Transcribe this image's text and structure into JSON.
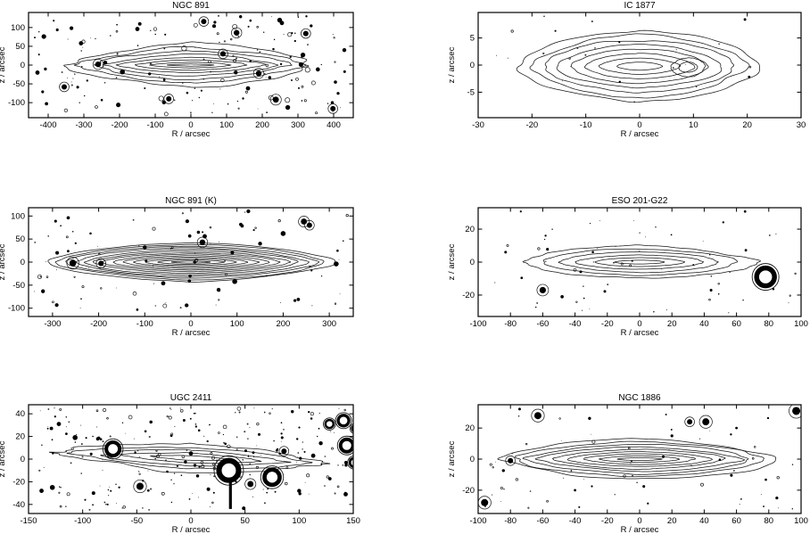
{
  "figure": {
    "background": "#ffffff",
    "ink": "#000000",
    "contour_color": "#161616"
  },
  "chart_data": [
    {
      "type": "contour",
      "title": "NGC 891",
      "xlabel": "R / arcsec",
      "ylabel": "z / arcsec",
      "xlim": [
        -455,
        455
      ],
      "ylim": [
        -140,
        140
      ],
      "xticks": [
        -400,
        -300,
        -200,
        -100,
        0,
        100,
        200,
        300,
        400
      ],
      "yticks": [
        -100,
        -50,
        0,
        50,
        100
      ],
      "galaxy": {
        "center": [
          0,
          0
        ],
        "r_extent_arcsec": 358,
        "z_extent_arcsec": 56,
        "contour_levels": 8,
        "wobble": 0.14,
        "end_shape": 1.5,
        "flatten_inner": 1.45,
        "radial_power": 0.82,
        "slope": 0
      },
      "bright_stars": [],
      "dark_stars": [
        [
          -260,
          2,
          3.2
        ],
        [
          -355,
          -58,
          3
        ],
        [
          -308,
          58,
          2.4
        ],
        [
          -192,
          -18,
          2.8
        ],
        [
          90,
          30,
          3
        ],
        [
          190,
          -22,
          3.2
        ],
        [
          238,
          -92,
          3.4
        ],
        [
          -62,
          -90,
          3
        ],
        [
          128,
          86,
          3.2
        ],
        [
          322,
          84,
          3
        ],
        [
          398,
          -116,
          3
        ],
        [
          36,
          116,
          3
        ],
        [
          -412,
          76,
          2.6
        ],
        [
          255,
          112,
          2.4
        ],
        [
          160,
          -62,
          2.4
        ],
        [
          -150,
          96,
          2.4
        ],
        [
          430,
          40,
          2.2
        ],
        [
          -430,
          -20,
          2.4
        ]
      ],
      "streaks": [],
      "subpeaks": [],
      "noise_specks": {
        "count": 150,
        "max_radius_px": 2.4
      }
    },
    {
      "type": "contour",
      "title": "IC 1877",
      "xlabel": "R / arcsec",
      "ylabel": "z / arcsec",
      "xlim": [
        -30,
        30
      ],
      "ylim": [
        -9.7,
        9.7
      ],
      "xticks": [
        -30,
        -20,
        -10,
        0,
        10,
        20,
        30
      ],
      "yticks": [
        -5,
        0,
        5
      ],
      "galaxy": {
        "center": [
          0,
          -0.2
        ],
        "r_extent_arcsec": 22.3,
        "z_extent_arcsec": 6.6,
        "contour_levels": 8,
        "wobble": 0.09,
        "end_shape": 1.7,
        "flatten_inner": 1.05,
        "radial_power": 0.8,
        "slope": 0
      },
      "bright_stars": [],
      "dark_stars": [],
      "streaks": [],
      "subpeaks": [
        {
          "center": [
            9,
            -0.4
          ],
          "a": 3.2,
          "b": 1.7,
          "levels": 2
        }
      ],
      "noise_specks": {
        "count": 24,
        "max_radius_px": 1.1
      }
    },
    {
      "type": "contour",
      "title": "NGC 891 (K)",
      "xlabel": "R / arcsec",
      "ylabel": "z / arcsec",
      "xlim": [
        -352,
        352
      ],
      "ylim": [
        -118,
        118
      ],
      "xticks": [
        -300,
        -200,
        -100,
        0,
        100,
        200,
        300
      ],
      "yticks": [
        -100,
        -50,
        0,
        50,
        100
      ],
      "galaxy": {
        "center": [
          0,
          0
        ],
        "r_extent_arcsec": 312,
        "z_extent_arcsec": 42,
        "contour_levels": 13,
        "wobble": 0.055,
        "end_shape": 1.6,
        "flatten_inner": 1.15,
        "radial_power": 0.78,
        "slope": 0
      },
      "bright_stars": [],
      "dark_stars": [
        [
          -256,
          -2,
          3.8
        ],
        [
          25,
          43,
          3.2
        ],
        [
          200,
          62,
          2.8
        ],
        [
          245,
          88,
          3.4
        ],
        [
          257,
          80,
          3
        ],
        [
          315,
          -4,
          2.8
        ],
        [
          -195,
          -3,
          3
        ],
        [
          95,
          -42,
          2.8
        ],
        [
          -60,
          -46,
          2.4
        ],
        [
          30,
          56,
          2.4
        ],
        [
          150,
          40,
          2.2
        ],
        [
          -100,
          32,
          2.2
        ],
        [
          -290,
          20,
          2
        ],
        [
          60,
          -60,
          2.2
        ]
      ],
      "streaks": [],
      "subpeaks": [],
      "noise_specks": {
        "count": 85,
        "max_radius_px": 1.8
      }
    },
    {
      "type": "contour",
      "title": "ESO 201-G22",
      "xlabel": "R / arcsec",
      "ylabel": "z / arcsec",
      "xlim": [
        -100,
        100
      ],
      "ylim": [
        -33,
        33
      ],
      "xticks": [
        -100,
        -80,
        -60,
        -40,
        -20,
        0,
        20,
        40,
        60,
        80,
        100
      ],
      "yticks": [
        -20,
        0,
        20
      ],
      "galaxy": {
        "center": [
          0,
          0
        ],
        "r_extent_arcsec": 71,
        "z_extent_arcsec": 10,
        "contour_levels": 6,
        "wobble": 0.09,
        "end_shape": 1.7,
        "flatten_inner": 1.2,
        "radial_power": 0.85,
        "slope": 0
      },
      "bright_stars": [
        [
          78,
          -9,
          10
        ]
      ],
      "dark_stars": [
        [
          -60,
          -17,
          3.6
        ],
        [
          -48,
          -21,
          1.8
        ],
        [
          -83,
          6,
          1.5
        ]
      ],
      "streaks": [],
      "subpeaks": [],
      "noise_specks": {
        "count": 60,
        "max_radius_px": 1.2
      }
    },
    {
      "type": "contour",
      "title": "UGC 2411",
      "xlabel": "R / arcsec",
      "ylabel": "z / arcsec",
      "xlim": [
        -150,
        150
      ],
      "ylim": [
        -48,
        48
      ],
      "xticks": [
        -150,
        -100,
        -50,
        0,
        50,
        100,
        150
      ],
      "yticks": [
        -40,
        -20,
        0,
        20,
        40
      ],
      "galaxy": {
        "center": [
          0,
          1
        ],
        "r_extent_arcsec": 133,
        "z_extent_arcsec": 12,
        "contour_levels": 5,
        "wobble": 0.2,
        "end_shape": 1.4,
        "flatten_inner": 1.1,
        "radial_power": 0.8,
        "slope": -0.04
      },
      "bright_stars": [
        [
          -72,
          9,
          7.5
        ],
        [
          35,
          -10,
          11
        ],
        [
          75,
          -16,
          8.5
        ],
        [
          144,
          12,
          7
        ],
        [
          128,
          31,
          4.5
        ],
        [
          141,
          34,
          6
        ],
        [
          152,
          27,
          4
        ],
        [
          151,
          -3,
          5
        ]
      ],
      "dark_stars": [
        [
          -47,
          -24,
          4
        ],
        [
          55,
          -22,
          3.4
        ],
        [
          -107,
          19,
          2.8
        ],
        [
          -122,
          31,
          2.4
        ],
        [
          -128,
          -25,
          2.8
        ],
        [
          -138,
          -28,
          2.4
        ],
        [
          86,
          7,
          3
        ],
        [
          0,
          5,
          2.4
        ],
        [
          113,
          3,
          2.4
        ],
        [
          143,
          -31,
          2.4
        ],
        [
          -90,
          -30,
          2
        ],
        [
          120,
          14,
          2.2
        ],
        [
          100,
          -28,
          2.2
        ]
      ],
      "streaks": [
        [
          36.5,
          -16,
          -44,
          3.2
        ]
      ],
      "subpeaks": [],
      "noise_specks": {
        "count": 240,
        "max_radius_px": 1.6
      }
    },
    {
      "type": "contour",
      "title": "NGC 1886",
      "xlabel": "R / arcsec",
      "ylabel": "z / arcsec",
      "xlim": [
        -100,
        100
      ],
      "ylim": [
        -35,
        35
      ],
      "xticks": [
        -100,
        -80,
        -60,
        -40,
        -20,
        0,
        20,
        40,
        60,
        80,
        100
      ],
      "yticks": [
        -20,
        0,
        20
      ],
      "galaxy": {
        "center": [
          0,
          0
        ],
        "r_extent_arcsec": 85,
        "z_extent_arcsec": 13,
        "contour_levels": 9,
        "wobble": 0.1,
        "end_shape": 1.6,
        "flatten_inner": 1.2,
        "radial_power": 0.82,
        "slope": 0
      },
      "bright_stars": [],
      "dark_stars": [
        [
          -63,
          28,
          4
        ],
        [
          31,
          24,
          3
        ],
        [
          41,
          24,
          4
        ],
        [
          97,
          31,
          4.5
        ],
        [
          -96,
          -28,
          4
        ],
        [
          -80,
          -1,
          3
        ],
        [
          85,
          -25,
          1.6
        ],
        [
          20,
          15,
          1.6
        ],
        [
          60,
          20,
          1.4
        ],
        [
          -40,
          -20,
          1.4
        ]
      ],
      "streaks": [],
      "subpeaks": [],
      "noise_specks": {
        "count": 60,
        "max_radius_px": 1.3
      }
    }
  ]
}
